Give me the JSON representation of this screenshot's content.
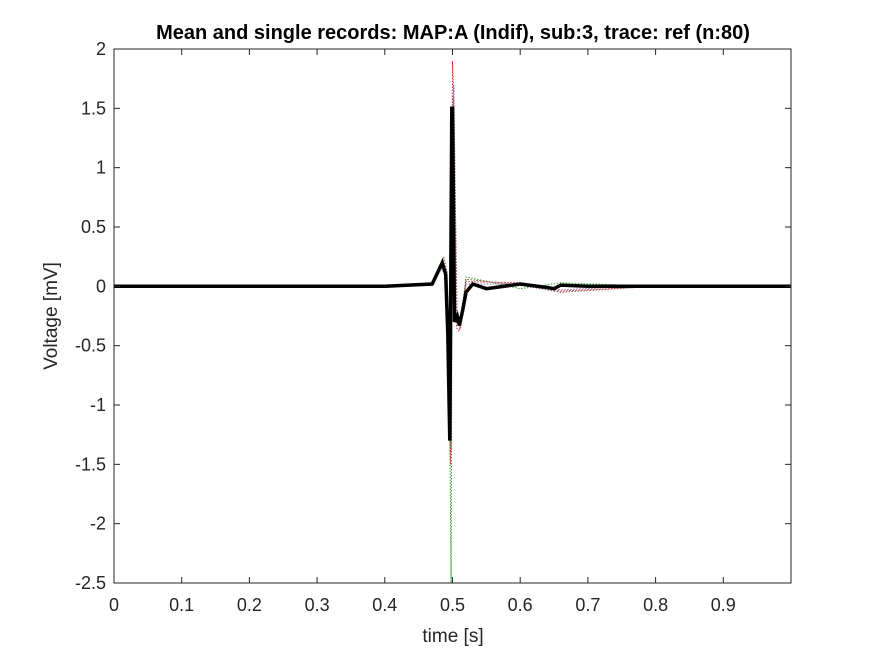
{
  "chart_data": {
    "type": "line",
    "title": "Mean and single records: MAP:A (Indif), sub:3, trace: ref (n:80)",
    "xlabel": "time [s]",
    "ylabel": "Voltage [mV]",
    "xlim": [
      0,
      1
    ],
    "ylim": [
      -2.5,
      2
    ],
    "xticks": [
      "0",
      "0.1",
      "0.2",
      "0.3",
      "0.4",
      "0.5",
      "0.6",
      "0.7",
      "0.8",
      "0.9"
    ],
    "yticks": [
      "2",
      "1.5",
      "1",
      "0.5",
      "0",
      "-0.5",
      "-1",
      "-1.5",
      "-2",
      "-2.5"
    ],
    "xtick_values": [
      0,
      0.1,
      0.2,
      0.3,
      0.4,
      0.5,
      0.6,
      0.7,
      0.8,
      0.9
    ],
    "ytick_values": [
      2,
      1.5,
      1,
      0.5,
      0,
      -0.5,
      -1,
      -1.5,
      -2,
      -2.5
    ],
    "grid": false,
    "series": [
      {
        "role": "mean",
        "color": "#000000",
        "x": [
          0,
          0.1,
          0.2,
          0.3,
          0.4,
          0.47,
          0.485,
          0.49,
          0.493,
          0.496,
          0.499,
          0.5,
          0.503,
          0.507,
          0.51,
          0.515,
          0.52,
          0.53,
          0.55,
          0.6,
          0.64,
          0.65,
          0.66,
          0.7,
          0.8,
          1.0
        ],
        "y": [
          0,
          0,
          0,
          0,
          0,
          0.02,
          0.2,
          0.1,
          -0.4,
          -1.3,
          1.5,
          1.5,
          -0.3,
          -0.25,
          -0.33,
          -0.2,
          -0.05,
          0.02,
          -0.02,
          0.02,
          -0.01,
          -0.02,
          0.01,
          0,
          0,
          0
        ]
      },
      {
        "role": "single-records",
        "color": "#d62728",
        "x": [
          0,
          0.2,
          0.4,
          0.47,
          0.485,
          0.49,
          0.494,
          0.497,
          0.5,
          0.502,
          0.506,
          0.51,
          0.52,
          0.6,
          0.66,
          0.8,
          1.0
        ],
        "y": [
          0,
          0.01,
          0,
          0.03,
          0.22,
          0.1,
          -0.6,
          -1.5,
          1.9,
          1.6,
          -0.35,
          -0.38,
          0.04,
          0.03,
          -0.04,
          0,
          0
        ]
      },
      {
        "role": "single-records",
        "color": "#2ca02c",
        "x": [
          0,
          0.2,
          0.4,
          0.47,
          0.486,
          0.491,
          0.495,
          0.498,
          0.5,
          0.501,
          0.505,
          0.512,
          0.52,
          0.6,
          0.66,
          0.8,
          1.0
        ],
        "y": [
          0,
          -0.01,
          0,
          0.02,
          0.18,
          0.05,
          -0.5,
          -2.5,
          1.3,
          0.9,
          -0.3,
          -0.28,
          0.08,
          -0.02,
          0.03,
          0,
          0
        ]
      },
      {
        "role": "single-records",
        "color": "#9467bd",
        "x": [
          0,
          0.2,
          0.4,
          0.47,
          0.484,
          0.49,
          0.494,
          0.497,
          0.499,
          0.502,
          0.506,
          0.511,
          0.52,
          0.6,
          0.66,
          0.8,
          1.0
        ],
        "y": [
          0,
          0,
          0.01,
          0.01,
          0.15,
          0.08,
          -0.35,
          -1.1,
          1.4,
          1.7,
          -0.2,
          -0.3,
          0.02,
          0.02,
          -0.03,
          0.01,
          0
        ]
      },
      {
        "role": "single-records",
        "color": "#8c564b",
        "x": [
          0,
          0.2,
          0.4,
          0.47,
          0.487,
          0.492,
          0.495,
          0.498,
          0.501,
          0.503,
          0.507,
          0.512,
          0.52,
          0.6,
          0.66,
          0.8,
          1.0
        ],
        "y": [
          0,
          0,
          -0.01,
          0.02,
          0.25,
          0.12,
          -0.45,
          -1.4,
          1.6,
          1.2,
          -0.28,
          -0.36,
          0.06,
          0.01,
          -0.05,
          0,
          0
        ]
      }
    ]
  }
}
